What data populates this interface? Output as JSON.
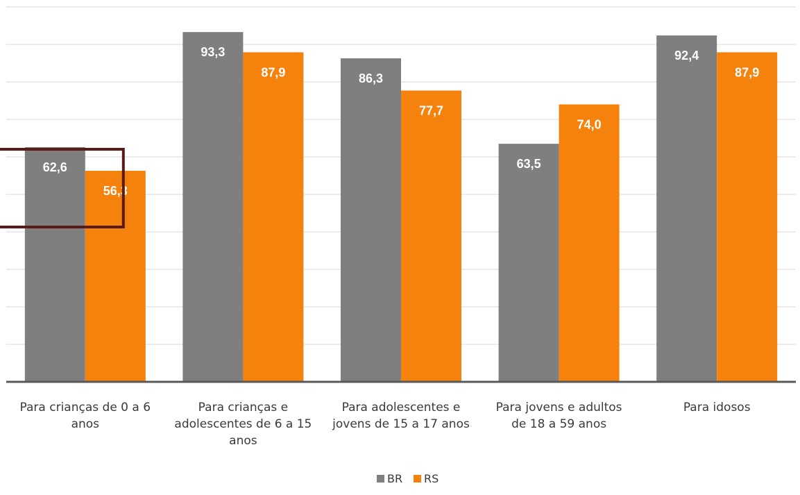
{
  "chart_data": {
    "type": "bar",
    "categories": [
      [
        "Para crianças de 0 a 6",
        "anos"
      ],
      [
        "Para crianças e",
        "adolescentes de 6 a 15",
        "anos"
      ],
      [
        "Para adolescentes e",
        "jovens de 15 a 17 anos"
      ],
      [
        "Para jovens e adultos",
        "de 18 a 59 anos"
      ],
      [
        "Para idosos"
      ]
    ],
    "series": [
      {
        "name": "BR",
        "color": "#7f7f7f",
        "values": [
          62.6,
          93.3,
          86.3,
          63.5,
          92.4
        ],
        "labels": [
          "62,6",
          "93,3",
          "86,3",
          "63,5",
          "92,4"
        ]
      },
      {
        "name": "RS",
        "color": "#f5820d",
        "values": [
          56.3,
          87.9,
          77.7,
          74.0,
          87.9
        ],
        "labels": [
          "56,3",
          "87,9",
          "77,7",
          "74,0",
          "87,9"
        ]
      }
    ],
    "ylim": [
      0,
      100
    ],
    "grid": true,
    "legend_position": "bottom",
    "highlight": {
      "category_index": 0,
      "color": "#5a1a1a"
    }
  }
}
